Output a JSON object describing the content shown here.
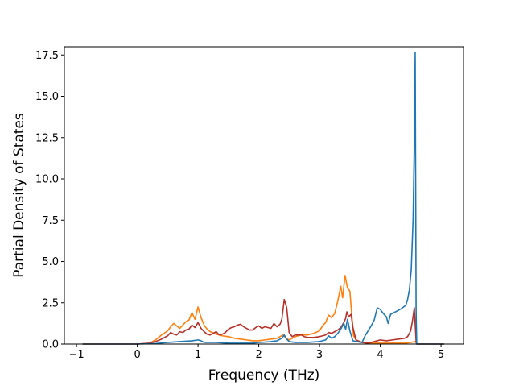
{
  "chart_data": {
    "type": "line",
    "title": "",
    "xlabel": "Frequency (THz)",
    "ylabel": "Partial Density of States",
    "xlim": [
      -1.2,
      5.37
    ],
    "ylim": [
      0,
      18.0
    ],
    "xticks": [
      -1,
      0,
      1,
      2,
      3,
      4,
      5
    ],
    "xtick_labels": [
      "−1",
      "0",
      "1",
      "2",
      "3",
      "4",
      "5"
    ],
    "yticks": [
      0.0,
      2.5,
      5.0,
      7.5,
      10.0,
      12.5,
      15.0,
      17.5
    ],
    "ytick_labels": [
      "0.0",
      "2.5",
      "5.0",
      "7.5",
      "10.0",
      "12.5",
      "15.0",
      "17.5"
    ],
    "grid": false,
    "legend": "none",
    "series": [
      {
        "color": "#ff7f0e",
        "points": [
          [
            -0.9,
            0
          ],
          [
            0.0,
            0
          ],
          [
            0.2,
            0.05
          ],
          [
            0.3,
            0.25
          ],
          [
            0.4,
            0.55
          ],
          [
            0.5,
            0.8
          ],
          [
            0.55,
            1.05
          ],
          [
            0.6,
            1.25
          ],
          [
            0.65,
            1.1
          ],
          [
            0.7,
            0.95
          ],
          [
            0.75,
            1.15
          ],
          [
            0.8,
            1.35
          ],
          [
            0.85,
            1.45
          ],
          [
            0.9,
            1.9
          ],
          [
            0.95,
            1.5
          ],
          [
            1.0,
            2.25
          ],
          [
            1.05,
            1.6
          ],
          [
            1.1,
            1.15
          ],
          [
            1.15,
            0.9
          ],
          [
            1.2,
            0.75
          ],
          [
            1.3,
            0.6
          ],
          [
            1.4,
            0.5
          ],
          [
            1.5,
            0.45
          ],
          [
            1.6,
            0.35
          ],
          [
            1.7,
            0.3
          ],
          [
            1.8,
            0.25
          ],
          [
            1.9,
            0.2
          ],
          [
            2.0,
            0.2
          ],
          [
            2.1,
            0.25
          ],
          [
            2.2,
            0.3
          ],
          [
            2.3,
            0.35
          ],
          [
            2.35,
            0.45
          ],
          [
            2.4,
            0.55
          ],
          [
            2.45,
            0.35
          ],
          [
            2.5,
            0.25
          ],
          [
            2.6,
            0.45
          ],
          [
            2.7,
            0.55
          ],
          [
            2.8,
            0.55
          ],
          [
            2.9,
            0.65
          ],
          [
            3.0,
            0.8
          ],
          [
            3.05,
            1.1
          ],
          [
            3.1,
            1.3
          ],
          [
            3.15,
            1.75
          ],
          [
            3.2,
            1.6
          ],
          [
            3.25,
            1.85
          ],
          [
            3.3,
            2.6
          ],
          [
            3.35,
            3.5
          ],
          [
            3.38,
            2.8
          ],
          [
            3.42,
            4.15
          ],
          [
            3.46,
            3.4
          ],
          [
            3.5,
            3.2
          ],
          [
            3.53,
            1.8
          ],
          [
            3.56,
            0.5
          ],
          [
            3.6,
            0.25
          ],
          [
            3.7,
            0.1
          ],
          [
            3.8,
            0.05
          ],
          [
            3.9,
            0.05
          ],
          [
            4.0,
            0.05
          ],
          [
            4.2,
            0.05
          ],
          [
            4.4,
            0.05
          ],
          [
            4.5,
            0.1
          ],
          [
            4.58,
            0.15
          ],
          [
            4.6,
            0
          ],
          [
            5.05,
            0
          ]
        ]
      },
      {
        "color": "#b5302a",
        "points": [
          [
            -0.9,
            0
          ],
          [
            0.0,
            0
          ],
          [
            0.2,
            0.05
          ],
          [
            0.3,
            0.15
          ],
          [
            0.4,
            0.3
          ],
          [
            0.5,
            0.5
          ],
          [
            0.55,
            0.7
          ],
          [
            0.6,
            0.6
          ],
          [
            0.65,
            0.55
          ],
          [
            0.7,
            0.75
          ],
          [
            0.75,
            0.7
          ],
          [
            0.8,
            0.85
          ],
          [
            0.85,
            0.9
          ],
          [
            0.9,
            1.15
          ],
          [
            0.95,
            1.0
          ],
          [
            1.0,
            1.3
          ],
          [
            1.05,
            0.95
          ],
          [
            1.1,
            0.75
          ],
          [
            1.15,
            0.6
          ],
          [
            1.2,
            0.55
          ],
          [
            1.3,
            0.75
          ],
          [
            1.35,
            0.55
          ],
          [
            1.4,
            0.6
          ],
          [
            1.45,
            0.7
          ],
          [
            1.5,
            0.9
          ],
          [
            1.55,
            1.0
          ],
          [
            1.6,
            1.05
          ],
          [
            1.65,
            1.15
          ],
          [
            1.7,
            1.2
          ],
          [
            1.75,
            1.05
          ],
          [
            1.8,
            0.95
          ],
          [
            1.85,
            0.85
          ],
          [
            1.9,
            0.85
          ],
          [
            1.95,
            1.0
          ],
          [
            2.0,
            1.1
          ],
          [
            2.05,
            0.95
          ],
          [
            2.1,
            1.05
          ],
          [
            2.15,
            1.0
          ],
          [
            2.2,
            0.95
          ],
          [
            2.25,
            1.25
          ],
          [
            2.3,
            1.05
          ],
          [
            2.35,
            1.2
          ],
          [
            2.38,
            1.5
          ],
          [
            2.42,
            2.7
          ],
          [
            2.46,
            2.2
          ],
          [
            2.5,
            0.7
          ],
          [
            2.55,
            0.45
          ],
          [
            2.6,
            0.55
          ],
          [
            2.7,
            0.55
          ],
          [
            2.75,
            0.45
          ],
          [
            2.8,
            0.4
          ],
          [
            2.9,
            0.4
          ],
          [
            3.0,
            0.45
          ],
          [
            3.05,
            0.5
          ],
          [
            3.1,
            0.55
          ],
          [
            3.15,
            0.7
          ],
          [
            3.2,
            0.65
          ],
          [
            3.25,
            0.75
          ],
          [
            3.3,
            0.85
          ],
          [
            3.35,
            1.0
          ],
          [
            3.4,
            1.3
          ],
          [
            3.43,
            1.55
          ],
          [
            3.45,
            1.95
          ],
          [
            3.48,
            1.65
          ],
          [
            3.52,
            1.8
          ],
          [
            3.55,
            1.0
          ],
          [
            3.6,
            0.25
          ],
          [
            3.7,
            0.1
          ],
          [
            3.8,
            0.05
          ],
          [
            3.9,
            0.15
          ],
          [
            4.0,
            0.25
          ],
          [
            4.1,
            0.2
          ],
          [
            4.2,
            0.25
          ],
          [
            4.3,
            0.3
          ],
          [
            4.4,
            0.35
          ],
          [
            4.45,
            0.45
          ],
          [
            4.5,
            0.8
          ],
          [
            4.53,
            1.4
          ],
          [
            4.56,
            2.2
          ],
          [
            4.59,
            0.15
          ],
          [
            4.6,
            0
          ],
          [
            5.05,
            0
          ]
        ]
      },
      {
        "color": "#1f77b4",
        "points": [
          [
            -0.9,
            0
          ],
          [
            0.0,
            0
          ],
          [
            0.3,
            0.03
          ],
          [
            0.5,
            0.1
          ],
          [
            0.7,
            0.15
          ],
          [
            0.9,
            0.2
          ],
          [
            1.0,
            0.25
          ],
          [
            1.05,
            0.2
          ],
          [
            1.1,
            0.1
          ],
          [
            1.3,
            0.1
          ],
          [
            1.5,
            0.05
          ],
          [
            1.7,
            0.05
          ],
          [
            1.9,
            0.05
          ],
          [
            2.0,
            0.1
          ],
          [
            2.1,
            0.12
          ],
          [
            2.2,
            0.15
          ],
          [
            2.3,
            0.2
          ],
          [
            2.38,
            0.35
          ],
          [
            2.42,
            0.55
          ],
          [
            2.46,
            0.3
          ],
          [
            2.5,
            0.15
          ],
          [
            2.6,
            0.1
          ],
          [
            2.8,
            0.1
          ],
          [
            3.0,
            0.15
          ],
          [
            3.1,
            0.25
          ],
          [
            3.15,
            0.5
          ],
          [
            3.2,
            0.35
          ],
          [
            3.25,
            0.45
          ],
          [
            3.3,
            0.65
          ],
          [
            3.35,
            0.9
          ],
          [
            3.4,
            1.25
          ],
          [
            3.43,
            0.9
          ],
          [
            3.46,
            1.5
          ],
          [
            3.5,
            0.8
          ],
          [
            3.55,
            0.2
          ],
          [
            3.6,
            0.15
          ],
          [
            3.7,
            0.1
          ],
          [
            3.75,
            0.5
          ],
          [
            3.8,
            0.8
          ],
          [
            3.85,
            1.1
          ],
          [
            3.9,
            1.45
          ],
          [
            3.95,
            2.2
          ],
          [
            4.0,
            2.1
          ],
          [
            4.05,
            1.85
          ],
          [
            4.1,
            1.65
          ],
          [
            4.13,
            1.25
          ],
          [
            4.17,
            1.8
          ],
          [
            4.25,
            1.95
          ],
          [
            4.35,
            2.15
          ],
          [
            4.42,
            2.35
          ],
          [
            4.45,
            2.7
          ],
          [
            4.48,
            3.3
          ],
          [
            4.51,
            4.5
          ],
          [
            4.54,
            7.5
          ],
          [
            4.56,
            12.0
          ],
          [
            4.575,
            17.65
          ],
          [
            4.59,
            2.0
          ],
          [
            4.6,
            0
          ],
          [
            5.05,
            0
          ]
        ]
      }
    ]
  }
}
